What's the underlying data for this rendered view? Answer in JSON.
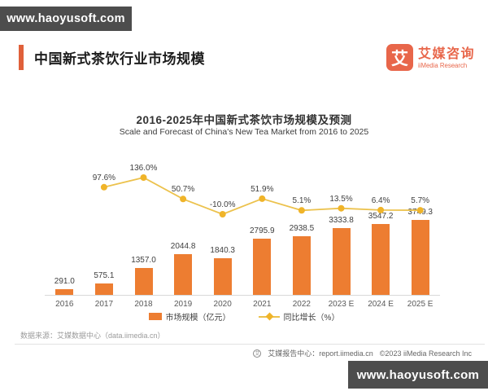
{
  "watermark": {
    "text": "www.haoyusoft.com"
  },
  "header": {
    "title": "中国新式茶饮行业市场规模"
  },
  "logo": {
    "mark": "艾",
    "name_cn": "艾媒咨询",
    "name_en": "iiMedia Research"
  },
  "chart_data": {
    "type": "bar+line",
    "title": "2016-2025年中国新式茶饮市场规模及预测",
    "subtitle": "Scale and Forecast of China's New Tea Market from 2016 to 2025",
    "categories": [
      "2016",
      "2017",
      "2018",
      "2019",
      "2020",
      "2021",
      "2022",
      "2023 E",
      "2024 E",
      "2025 E"
    ],
    "series": [
      {
        "name": "市场规模（亿元）",
        "type": "bar",
        "values": [
          291.0,
          575.1,
          1357.0,
          2044.8,
          1840.3,
          2795.9,
          2938.5,
          3333.8,
          3547.2,
          3749.3
        ],
        "color": "#ed7d31"
      },
      {
        "name": "同比增长（%）",
        "type": "line",
        "values": [
          null,
          97.6,
          136.0,
          50.7,
          -10.0,
          51.9,
          5.1,
          13.5,
          6.4,
          5.7
        ],
        "color": "#ecc24d",
        "marker_color": "#f0b429"
      }
    ],
    "legend_position": "bottom",
    "grid": false,
    "data_labels": true
  },
  "source": "数据来源：艾媒数据中心（data.iimedia.cn）",
  "footer": {
    "report_center": "艾媒报告中心：report.iimedia.cn",
    "copyright": "©2023  iiMedia Research  Inc"
  }
}
